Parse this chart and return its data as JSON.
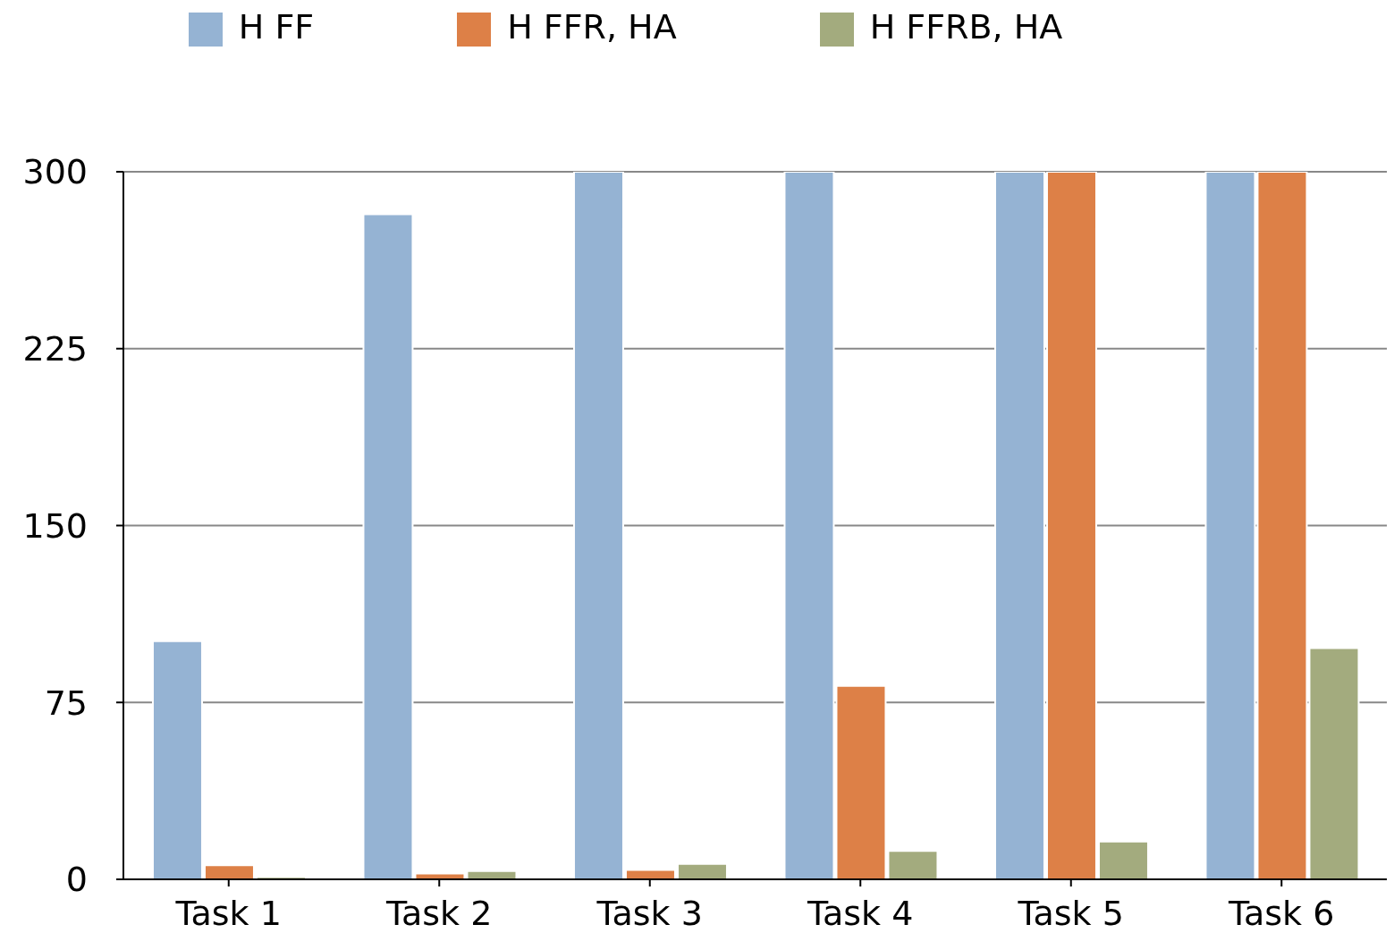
{
  "chart_data": {
    "type": "bar",
    "categories": [
      "Task 1",
      "Task 2",
      "Task 3",
      "Task 4",
      "Task 5",
      "Task 6"
    ],
    "series": [
      {
        "name": "H FF",
        "color": "#95b3d3",
        "values": [
          101,
          282,
          300,
          300,
          300,
          300
        ]
      },
      {
        "name": "H FFR, HA",
        "color": "#dd8047",
        "values": [
          6,
          2.5,
          4,
          82,
          300,
          300
        ]
      },
      {
        "name": "H FFRB, HA",
        "color": "#a3ab7e",
        "values": [
          1,
          3.5,
          6.5,
          12,
          16,
          98
        ]
      }
    ],
    "ylim": [
      0,
      300
    ],
    "yticks": [
      0,
      75,
      150,
      225,
      300
    ],
    "grid": "y",
    "legend": "top"
  }
}
